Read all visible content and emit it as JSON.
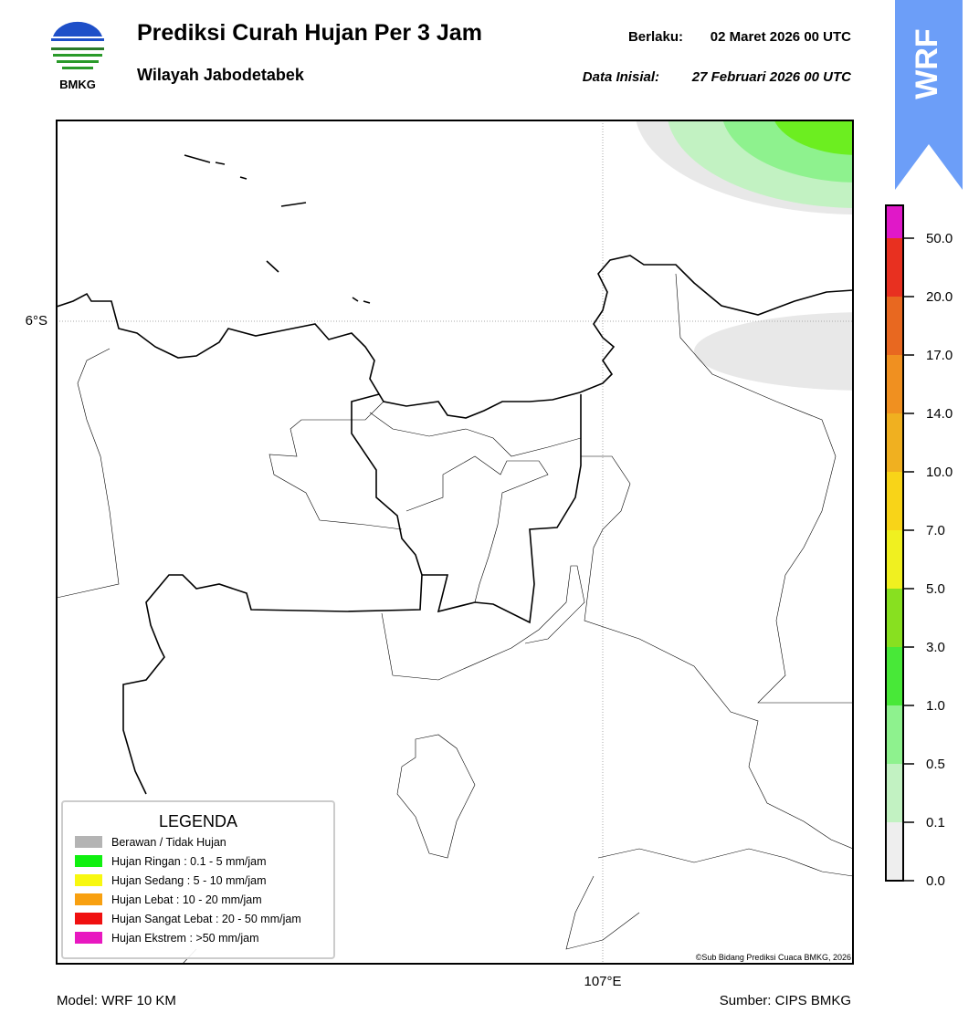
{
  "header": {
    "logo_text": "BMKG",
    "title": "Prediksi Curah Hujan Per 3 Jam",
    "subtitle": "Wilayah Jabodetabek",
    "valid_label": "Berlaku:",
    "valid_date": "02 Maret 2026 00 UTC",
    "init_label": "Data Inisial:",
    "init_date": "27 Februari 2026 00 UTC",
    "badge": "WRF"
  },
  "map": {
    "lat_label": "6°S",
    "lon_label": "107°E",
    "copyright": "©Sub Bidang Prediksi Cuaca BMKG, 2026"
  },
  "legend": {
    "title": "LEGENDA",
    "items": [
      {
        "label": "Berawan / Tidak Hujan",
        "color": "#b4b4b4"
      },
      {
        "label": "Hujan Ringan : 0.1 - 5 mm/jam",
        "color": "#10f010"
      },
      {
        "label": "Hujan Sedang : 5 - 10 mm/jam",
        "color": "#f8f810"
      },
      {
        "label": "Hujan Lebat : 10 - 20 mm/jam",
        "color": "#f8a010"
      },
      {
        "label": "Hujan Sangat Lebat : 20 - 50 mm/jam",
        "color": "#f01010"
      },
      {
        "label": "Hujan Ekstrem : >50 mm/jam",
        "color": "#e818c0"
      }
    ]
  },
  "colorbar": {
    "ticks": [
      "0.0",
      "0.1",
      "0.5",
      "1.0",
      "3.0",
      "5.0",
      "7.0",
      "10.0",
      "14.0",
      "17.0",
      "20.0",
      "50.0"
    ],
    "colors": [
      "#eeeeee",
      "#c2f2c2",
      "#8ef28e",
      "#48e838",
      "#88e020",
      "#f0f020",
      "#f8d418",
      "#f0b020",
      "#f09020",
      "#e86820",
      "#e83020",
      "#e018c8"
    ]
  },
  "footer": {
    "model": "Model: WRF 10 KM",
    "source": "Sumber: CIPS BMKG"
  }
}
